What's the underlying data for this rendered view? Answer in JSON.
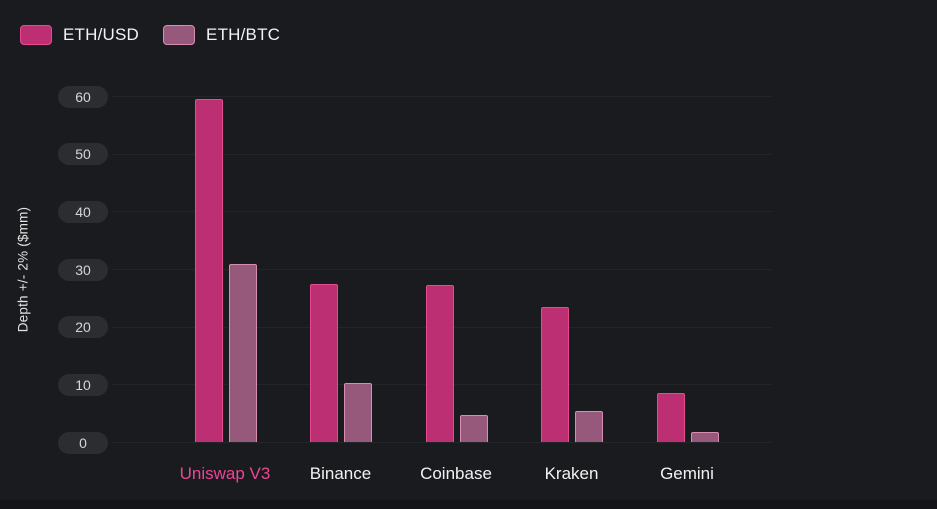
{
  "legend": {
    "items": [
      {
        "label": "ETH/USD",
        "fill": "#bc2f72",
        "border": "#e44c8d"
      },
      {
        "label": "ETH/BTC",
        "fill": "#96587b",
        "border": "#d78cb1"
      }
    ]
  },
  "chart_data": {
    "type": "bar",
    "title": "",
    "ylabel": "Depth +/- 2% ($mm)",
    "xlabel": "",
    "categories": [
      "Uniswap V3",
      "Binance",
      "Coinbase",
      "Kraken",
      "Gemini"
    ],
    "series": [
      {
        "name": "ETH/USD",
        "values": [
          59.5,
          27.5,
          27.3,
          23.5,
          8.5
        ],
        "fill": "#bc2f72",
        "border": "#e44c8d"
      },
      {
        "name": "ETH/BTC",
        "values": [
          31,
          10.3,
          4.7,
          5.5,
          1.8
        ],
        "fill": "#96587b",
        "border": "#d78cb1"
      }
    ],
    "y_ticks": [
      0,
      10,
      20,
      30,
      40,
      50,
      60
    ],
    "ylim": [
      0,
      60
    ],
    "grid": true,
    "legend_position": "top-left",
    "highlighted_category": "Uniswap V3",
    "highlight_color": "#ed4595",
    "label_color": "#f2f2f2",
    "background": "#1a1b1f"
  }
}
